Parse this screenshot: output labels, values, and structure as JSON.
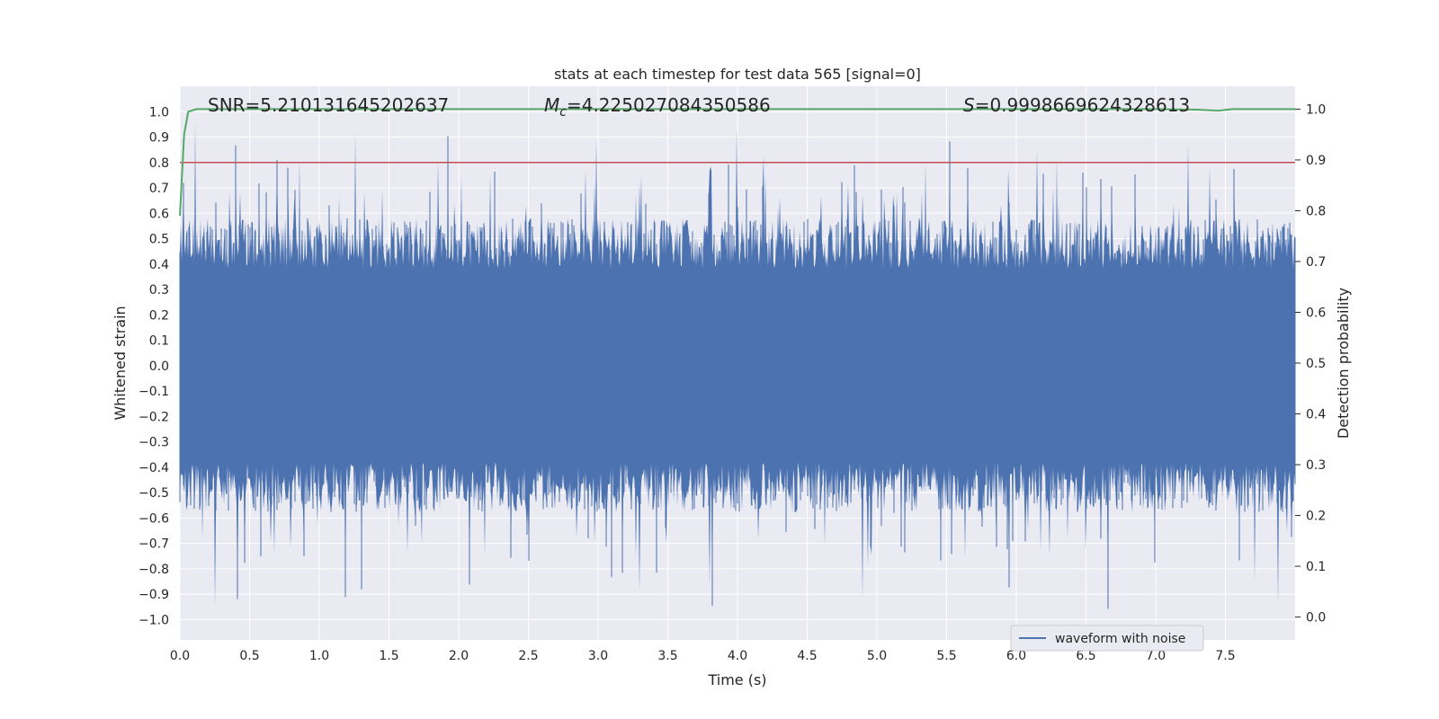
{
  "chart_data": {
    "type": "line",
    "title": "stats at each timestep for test data 565 [signal=0]",
    "xlabel": "Time (s)",
    "ylabel": "Whitened strain",
    "y2label": "Detection probability",
    "xlim": [
      0.0,
      8.0
    ],
    "ylim": [
      -1.08,
      1.1
    ],
    "y2lim": [
      -0.045,
      1.045
    ],
    "xticks": [
      "0.0",
      "0.5",
      "1.0",
      "1.5",
      "2.0",
      "2.5",
      "3.0",
      "3.5",
      "4.0",
      "4.5",
      "5.0",
      "5.5",
      "6.0",
      "6.5",
      "7.0",
      "7.5"
    ],
    "yticks": [
      "1.0",
      "0.9",
      "0.8",
      "0.7",
      "0.6",
      "0.5",
      "0.4",
      "0.3",
      "0.2",
      "0.1",
      "0.0",
      "−0.1",
      "−0.2",
      "−0.3",
      "−0.4",
      "−0.5",
      "−0.6",
      "−0.7",
      "−0.8",
      "−0.9",
      "−1.0"
    ],
    "y2ticks": [
      "1.0",
      "0.9",
      "0.8",
      "0.7",
      "0.6",
      "0.5",
      "0.4",
      "0.3",
      "0.2",
      "0.1",
      "0.0"
    ],
    "annotations": {
      "snr": "SNR=5.210131645202637",
      "mc_symbol": "M",
      "mc_sub": "c",
      "mc_value": "=4.225027084350586",
      "s_symbol": "S",
      "s_value": "=0.9998669624328613"
    },
    "threshold": {
      "value": 0.8,
      "color": "#c44e52"
    },
    "series": [
      {
        "name": "waveform with noise",
        "color": "#4c72b0",
        "axis": "left",
        "description": "whitened strain noise, roughly uniform amplitude within about ±0.55 with frequent spikes up to ±0.95"
      },
      {
        "name": "detection probability",
        "color": "#55a868",
        "axis": "right",
        "x": [
          0.0,
          0.03,
          0.06,
          0.12,
          1.0,
          2.0,
          3.0,
          4.0,
          5.0,
          6.0,
          7.0,
          7.3,
          7.45,
          7.55,
          8.0
        ],
        "values": [
          0.79,
          0.95,
          0.995,
          1.0,
          1.0,
          1.0,
          1.0,
          1.0,
          1.0,
          1.0,
          1.0,
          0.999,
          0.997,
          1.0,
          1.0
        ]
      }
    ],
    "legend": {
      "position": "lower-right",
      "entries": [
        "waveform with noise"
      ]
    },
    "style": {
      "background": "#eaeaf2",
      "grid": "#ffffff"
    }
  }
}
